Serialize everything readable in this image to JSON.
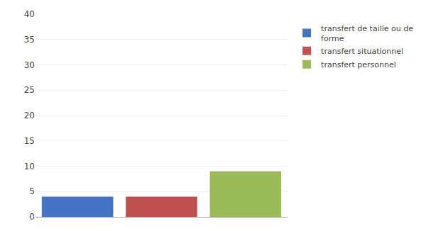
{
  "chart_data": {
    "type": "bar",
    "categories": [
      null,
      null,
      null
    ],
    "series": [
      {
        "name": "transfert de taille ou de\nforme",
        "color": "#4472c4",
        "values": [
          4,
          null,
          null
        ]
      },
      {
        "name": "transfert situationnel",
        "color": "#c0504d",
        "values": [
          null,
          4,
          null
        ]
      },
      {
        "name": "transfert personnel",
        "color": "#9bbb59",
        "values": [
          null,
          null,
          9
        ]
      }
    ],
    "ylim": [
      0,
      40
    ],
    "yticks": [
      0,
      5,
      10,
      15,
      20,
      25,
      30,
      35,
      40
    ],
    "grid": true,
    "tick_labels": "y",
    "legend": "right"
  }
}
